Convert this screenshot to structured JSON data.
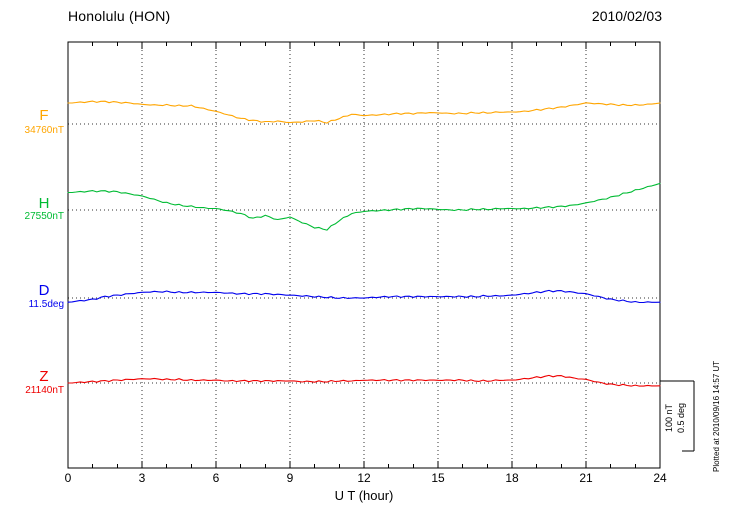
{
  "header": {
    "station": "Honolulu (HON)",
    "date": "2010/02/03"
  },
  "scalebar": {
    "nt_label": "100 nT",
    "deg_label": "0.5 deg"
  },
  "footer": {
    "plotted_at": "Plotted at 2010/09/16 14:57 UT"
  },
  "chart_data": {
    "type": "line",
    "title": "Honolulu (HON) magnetogram 2010/02/03",
    "xlabel": "U T (hour)",
    "x_range": [
      0,
      24
    ],
    "x_ticks": [
      0,
      3,
      6,
      9,
      12,
      15,
      18,
      21,
      24
    ],
    "grid": "dotted vertical lines every 3 hours; dotted horizontal baseline per component",
    "scale_bar": {
      "nT": 100,
      "deg": 0.5
    },
    "x_hours": [
      0,
      0.5,
      1,
      1.5,
      2,
      2.5,
      3,
      3.5,
      4,
      4.5,
      5,
      5.5,
      6,
      6.5,
      7,
      7.5,
      8,
      8.5,
      9,
      9.5,
      10,
      10.5,
      11,
      11.5,
      12,
      12.5,
      13,
      13.5,
      14,
      14.5,
      15,
      15.5,
      16,
      16.5,
      17,
      17.5,
      18,
      18.5,
      19,
      19.5,
      20,
      20.5,
      21,
      21.5,
      22,
      22.5,
      23,
      23.5,
      24
    ],
    "series": [
      {
        "name": "F",
        "unit": "nT",
        "baseline": 34760,
        "baseline_label": "34760nT",
        "color": "#FFA500",
        "deviations": [
          30,
          31,
          32,
          32,
          31,
          30,
          28,
          27,
          27,
          26,
          26,
          22,
          18,
          13,
          8,
          5,
          3,
          4,
          2,
          3,
          5,
          2,
          8,
          14,
          12,
          13,
          14,
          15,
          15,
          16,
          16,
          15,
          15,
          16,
          16,
          17,
          17,
          18,
          20,
          22,
          24,
          27,
          30,
          29,
          28,
          27,
          27,
          28,
          30
        ]
      },
      {
        "name": "H",
        "unit": "nT",
        "baseline": 27550,
        "baseline_label": "27550nT",
        "color": "#00BB33",
        "deviations": [
          25,
          26,
          27,
          27,
          26,
          23,
          20,
          15,
          10,
          7,
          5,
          3,
          2,
          -1,
          -5,
          -12,
          -8,
          -14,
          -10,
          -18,
          -25,
          -28,
          -15,
          -5,
          -2,
          -1,
          0,
          1,
          2,
          2,
          1,
          0,
          0,
          1,
          1,
          2,
          2,
          2,
          3,
          4,
          5,
          7,
          10,
          14,
          18,
          23,
          28,
          33,
          38
        ]
      },
      {
        "name": "D",
        "unit": "deg",
        "baseline": 11.5,
        "baseline_label": "11.5deg",
        "color": "#0000EE",
        "deviations": [
          -0.03,
          -0.02,
          -0.01,
          0.01,
          0.02,
          0.03,
          0.04,
          0.045,
          0.045,
          0.04,
          0.04,
          0.04,
          0.04,
          0.035,
          0.03,
          0.03,
          0.03,
          0.025,
          0.02,
          0.015,
          0.01,
          0.005,
          0,
          0,
          0,
          0.005,
          0.01,
          0.01,
          0.01,
          0.01,
          0.01,
          0.01,
          0.01,
          0.01,
          0.015,
          0.015,
          0.02,
          0.03,
          0.04,
          0.05,
          0.05,
          0.04,
          0.03,
          0.01,
          -0.01,
          -0.02,
          -0.03,
          -0.03,
          -0.03
        ]
      },
      {
        "name": "Z",
        "unit": "nT",
        "baseline": 21140,
        "baseline_label": "21140nT",
        "color": "#EE0000",
        "deviations": [
          0,
          1,
          2,
          3,
          4,
          5,
          6,
          6,
          5,
          5,
          4,
          4,
          4,
          3,
          3,
          3,
          3,
          3,
          3,
          2,
          2,
          2,
          3,
          3,
          4,
          4,
          4,
          4,
          4,
          4,
          4,
          4,
          4,
          3,
          3,
          4,
          4,
          6,
          8,
          10,
          10,
          7,
          5,
          1,
          -2,
          -3,
          -4,
          -4,
          -4
        ]
      }
    ]
  }
}
